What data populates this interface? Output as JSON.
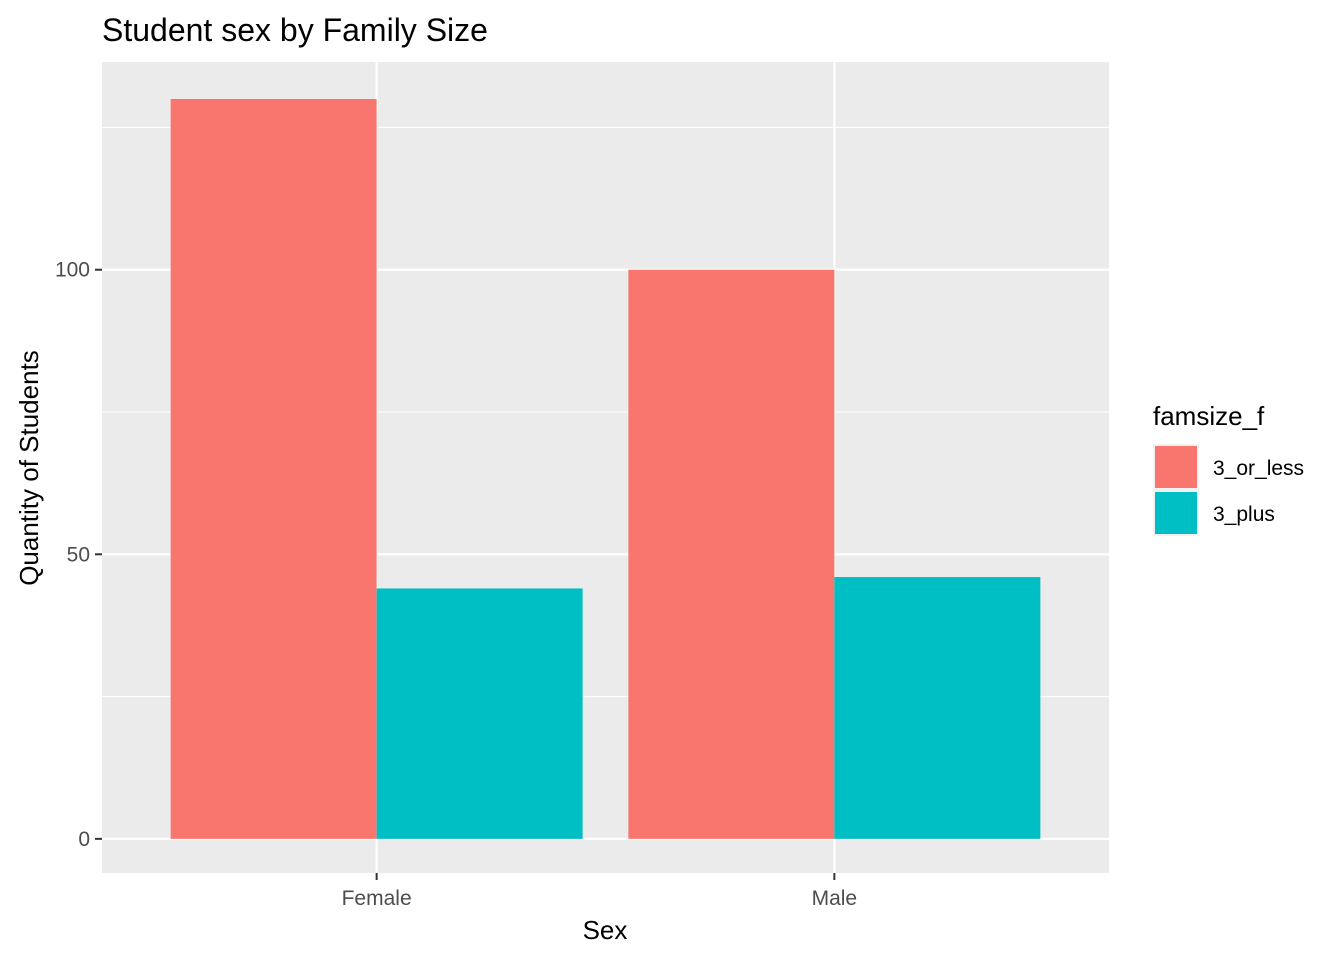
{
  "chart_data": {
    "type": "bar",
    "title": "Student sex by Family Size",
    "xlabel": "Sex",
    "ylabel": "Quantity of Students",
    "categories": [
      "Female",
      "Male"
    ],
    "series": [
      {
        "name": "3_or_less",
        "values": [
          130,
          100
        ],
        "color": "#F8766D"
      },
      {
        "name": "3_plus",
        "values": [
          44,
          46
        ],
        "color": "#00BFC4"
      }
    ],
    "yticks": [
      0,
      50,
      100
    ],
    "ylim": [
      -6,
      136.5
    ],
    "grid": true,
    "legend": {
      "title": "famsize_f",
      "position": "right"
    },
    "panel_background": "#EBEBEB",
    "grid_color": "#FFFFFF"
  }
}
